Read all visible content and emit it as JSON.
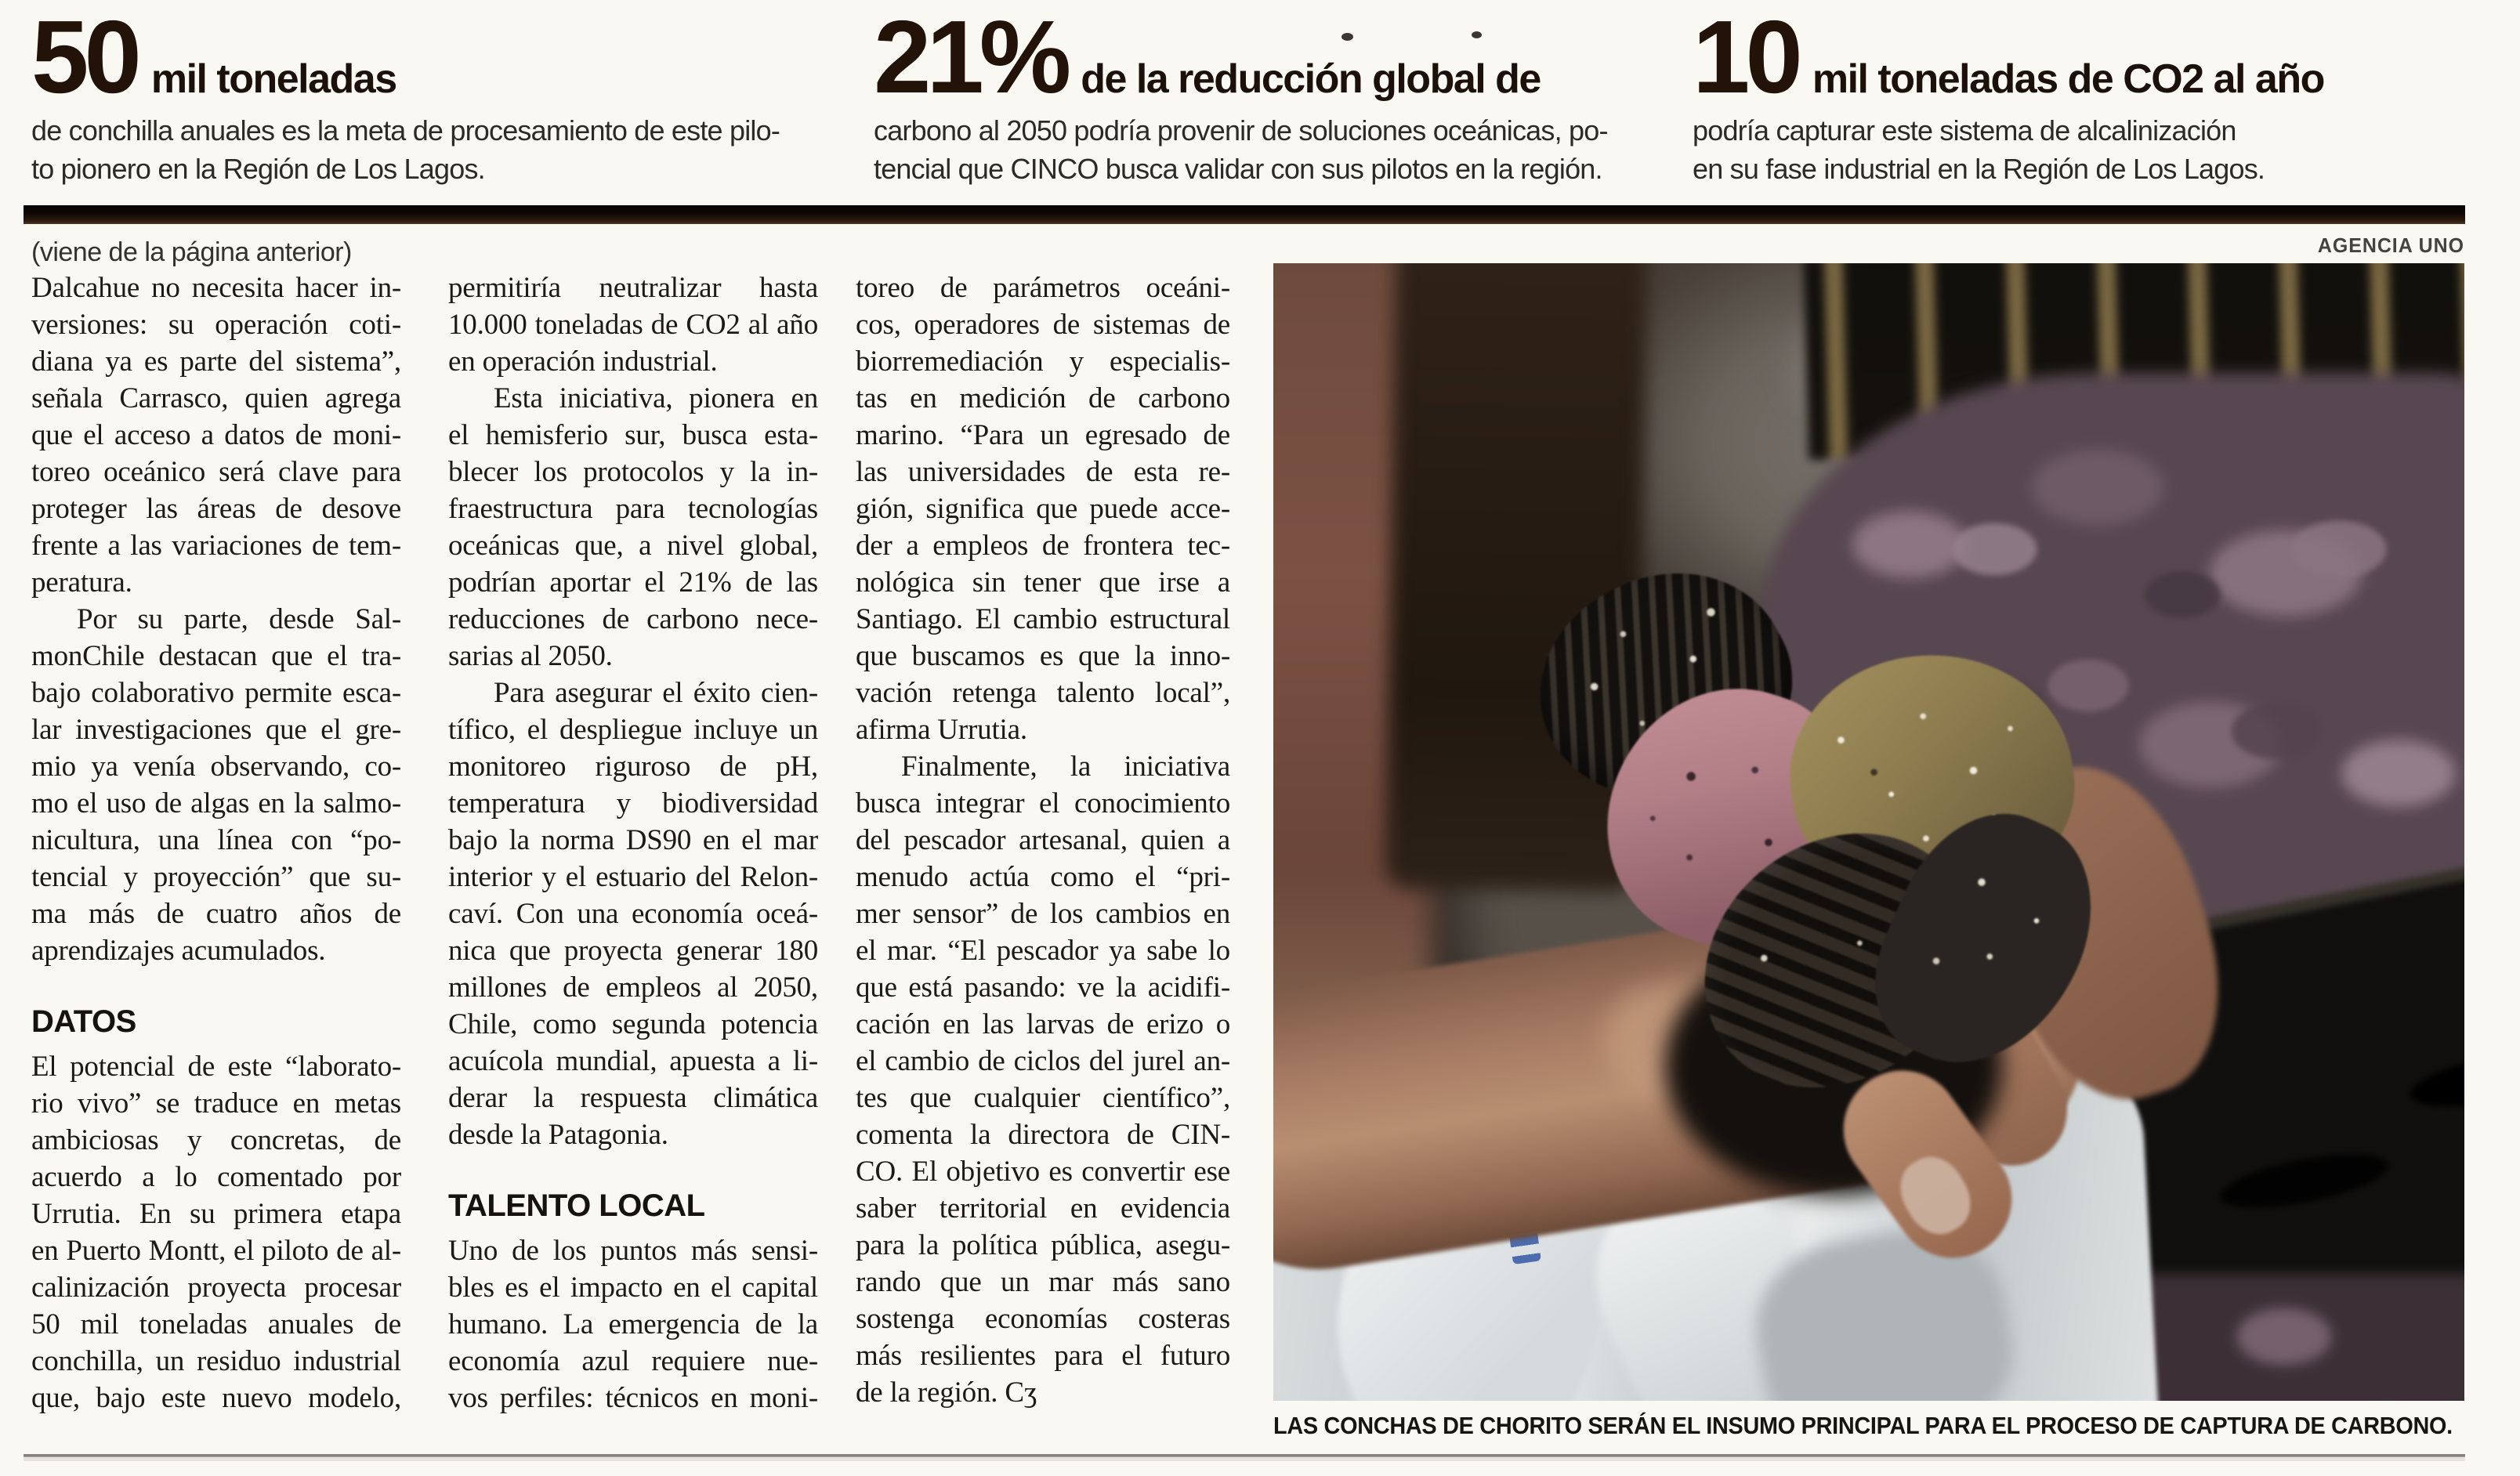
{
  "colors": {
    "page_background": "#faf8f3",
    "divider_bar": "#170d09"
  },
  "stats": [
    {
      "number": "50",
      "unit": "mil toneladas",
      "desc_lines": [
        "de conchilla anuales es la meta de procesamiento de este pilo-",
        "to pionero en la Región de Los Lagos."
      ]
    },
    {
      "number": "21%",
      "unit": "de la reducción global de",
      "desc_lines": [
        "carbono al 2050 podría provenir de soluciones oceánicas, po-",
        "tencial que CINCO busca validar con sus pilotos en la región."
      ]
    },
    {
      "number": "10",
      "unit": "mil toneladas de CO2 al año",
      "desc_lines": [
        "podría capturar este sistema de alcalinización",
        "en su fase industrial en la Región de Los Lagos."
      ]
    }
  ],
  "photo": {
    "credit": "AGENCIA UNO",
    "caption": "LAS CONCHAS DE CHORITO SERÁN EL INSUMO PRINCIPAL PARA EL PROCESO DE CAPTURA DE CARBONO."
  },
  "columns": [
    {
      "blocks": [
        {
          "type": "notice",
          "text": "(viene de la página anterior)"
        },
        {
          "type": "para",
          "indent": false,
          "cont": false,
          "lines": [
            "Dalcahue no necesita hacer in-",
            "versiones: su operación coti-",
            "diana ya es parte del sistema”,",
            "señala Carrasco, quien agrega",
            "que el acceso a datos de moni-",
            "toreo oceánico será clave para",
            "proteger las áreas de desove",
            "frente a las variaciones de tem-",
            "peratura."
          ]
        },
        {
          "type": "para",
          "indent": true,
          "cont": false,
          "lines": [
            "Por su parte, desde Sal-",
            "monChile destacan que el tra-",
            "bajo colaborativo permite esca-",
            "lar investigaciones que el gre-",
            "mio ya venía observando, co-",
            "mo el uso de algas en la salmo-",
            "nicultura, una línea con “po-",
            "tencial y proyección” que su-",
            "ma más de cuatro años de",
            "aprendizajes acumulados."
          ]
        },
        {
          "type": "heading",
          "text": "DATOS"
        },
        {
          "type": "para",
          "indent": false,
          "cont": true,
          "lines": [
            "El potencial de este “laborato-",
            "rio vivo” se traduce en metas",
            "ambiciosas y concretas, de",
            "acuerdo a lo comentado por",
            "Urrutia. En su primera etapa",
            "en Puerto Montt, el piloto de al-",
            "calinización proyecta procesar",
            "50 mil toneladas anuales de",
            "conchilla, un residuo industrial",
            "que, bajo este nuevo modelo,"
          ]
        }
      ]
    },
    {
      "blocks": [
        {
          "type": "para",
          "indent": false,
          "cont": false,
          "lines": [
            "permitiría neutralizar hasta",
            "10.000 toneladas de CO2 al año",
            "en operación industrial."
          ]
        },
        {
          "type": "para",
          "indent": true,
          "cont": false,
          "lines": [
            "Esta iniciativa, pionera en",
            "el hemisferio sur, busca esta-",
            "blecer los protocolos y la in-",
            "fraestructura para tecnologías",
            "oceánicas que, a nivel global,",
            "podrían aportar el 21% de las",
            "reducciones de carbono nece-",
            "sarias al 2050."
          ]
        },
        {
          "type": "para",
          "indent": true,
          "cont": false,
          "lines": [
            "Para asegurar el éxito cien-",
            "tífico, el despliegue incluye un",
            "monitoreo riguroso de pH,",
            "temperatura y biodiversidad",
            "bajo la norma DS90 en el mar",
            "interior y el estuario del Relon-",
            "caví. Con una economía oceá-",
            "nica que proyecta generar 180",
            "millones de empleos al 2050,",
            "Chile, como segunda potencia",
            "acuícola mundial, apuesta a li-",
            "derar la respuesta climática",
            "desde la Patagonia."
          ]
        },
        {
          "type": "heading",
          "text": "TALENTO LOCAL"
        },
        {
          "type": "para",
          "indent": false,
          "cont": true,
          "lines": [
            "Uno de los puntos más sensi-",
            "bles es el impacto en el capital",
            "humano. La emergencia de la",
            "economía azul requiere nue-",
            "vos perfiles: técnicos en moni-"
          ]
        }
      ]
    },
    {
      "blocks": [
        {
          "type": "para",
          "indent": false,
          "cont": false,
          "lines": [
            "toreo de parámetros oceáni-",
            "cos, operadores de sistemas de",
            "biorremediación y especialis-",
            "tas en medición de carbono",
            "marino. “Para un egresado de",
            "las universidades de esta re-",
            "gión, significa que puede acce-",
            "der a empleos de frontera tec-",
            "nológica sin tener que irse a",
            "Santiago. El cambio estructural",
            "que buscamos es que la inno-",
            "vación retenga talento local”,",
            "afirma Urrutia."
          ]
        },
        {
          "type": "para",
          "indent": true,
          "cont": false,
          "lines": [
            "Finalmente, la iniciativa",
            "busca integrar el conocimiento",
            "del pescador artesanal, quien a",
            "menudo actúa como el “pri-",
            "mer sensor” de los cambios en",
            "el mar. “El pescador ya sabe lo",
            "que está pasando: ve la acidifi-",
            "cación en las larvas de erizo o",
            "el cambio de ciclos del jurel an-",
            "tes que cualquier científico”,",
            "comenta la directora de CIN-",
            "CO. El objetivo es convertir ese",
            "saber territorial en evidencia",
            "para la política pública, asegu-",
            "rando que un mar más sano",
            "sostenga economías costeras",
            "más resilientes para el futuro",
            "de la región. Cʒ"
          ]
        }
      ]
    }
  ]
}
